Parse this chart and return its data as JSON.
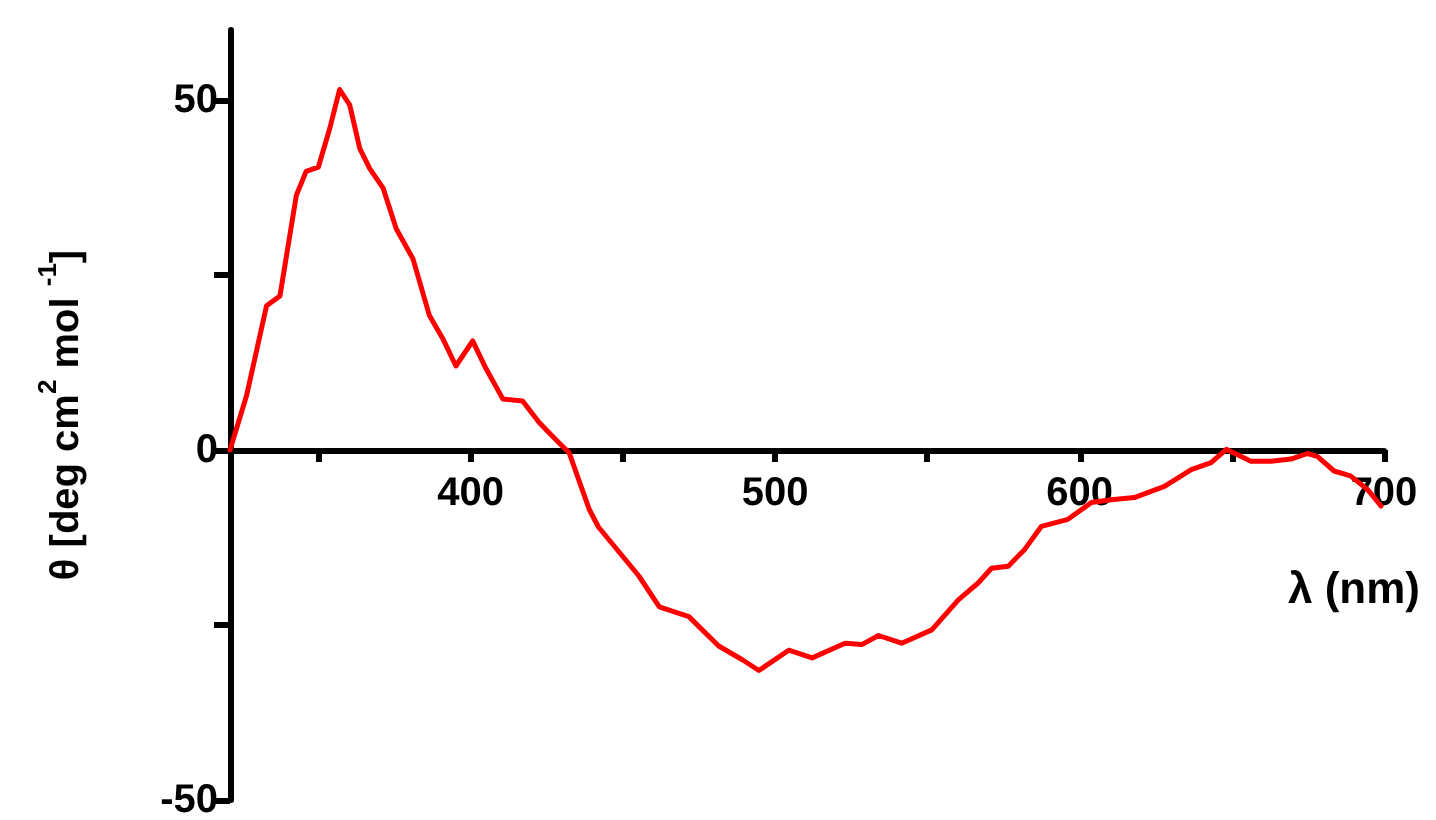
{
  "chart_data": {
    "type": "line",
    "xlabel": "λ (nm)",
    "ylabel": "θ [deg cm$^{2}$ mol $^{-1}$]",
    "xlim": [
      321,
      700
    ],
    "xticks": [
      {
        "value": 350,
        "label": null
      },
      400,
      {
        "value": 450,
        "label": null
      },
      500,
      {
        "value": 550,
        "label": null
      },
      600,
      {
        "value": 650,
        "label": null
      },
      700
    ],
    "ylim": [
      -50,
      60
    ],
    "yticks": [
      -50,
      {
        "value": -25,
        "label": null
      },
      0,
      {
        "value": 25,
        "label": null
      },
      50
    ],
    "marker": "none",
    "line_style": "solid",
    "series": [
      {
        "color": "#ff0000",
        "x": [
          321,
          326.4,
          333,
          337.4,
          342.8,
          346,
          350,
          353.8,
          357,
          360.3,
          363.6,
          366.9,
          371.3,
          375.6,
          381.1,
          386.5,
          390.9,
          395.2,
          400.7,
          405.1,
          410.6,
          417.1,
          422.6,
          429.1,
          432.4,
          439,
          442,
          455.3,
          462,
          471.7,
          481.5,
          489.4,
          494.7,
          504.5,
          512.2,
          523,
          528.5,
          534,
          541.6,
          551.5,
          560.2,
          566.7,
          571.1,
          576.6,
          582,
          587.5,
          596.2,
          603.9,
          610.4,
          618,
          627.9,
          636.7,
          643.2,
          648.2,
          656.3,
          662.9,
          669.4,
          674.9,
          678.1,
          683.6,
          689,
          694.5,
          699
        ],
        "values": [
          0,
          7.7,
          20.6,
          22,
          36.4,
          39.8,
          40.4,
          46,
          51.5,
          49.3,
          43.1,
          40.2,
          37.4,
          31.6,
          27.3,
          19.2,
          15.9,
          12,
          15.6,
          11.6,
          7.3,
          7,
          3.9,
          1,
          -0.4,
          -8.5,
          -11,
          -18,
          -22.4,
          -23.8,
          -28,
          -30,
          -31.5,
          -28.6,
          -29.7,
          -27.6,
          -27.8,
          -26.5,
          -27.6,
          -25.7,
          -21.4,
          -19,
          -16.9,
          -16.6,
          -14.2,
          -10.9,
          -9.9,
          -7.5,
          -7.1,
          -6.8,
          -5.2,
          -2.8,
          -1.8,
          0.1,
          -1.6,
          -1.6,
          -1.3,
          -0.5,
          -0.9,
          -3,
          -3.7,
          -5.6,
          -8
        ]
      }
    ]
  }
}
